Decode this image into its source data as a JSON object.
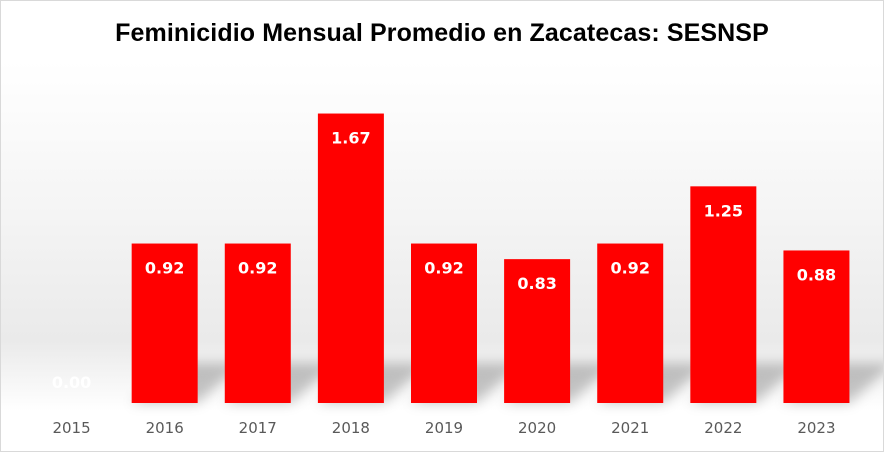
{
  "chart_data": {
    "type": "bar",
    "title": "Feminicidio Mensual Promedio en Zacatecas: SESNSP",
    "categories": [
      "2015",
      "2016",
      "2017",
      "2018",
      "2019",
      "2020",
      "2021",
      "2022",
      "2023"
    ],
    "values": [
      0.0,
      0.92,
      0.92,
      1.67,
      0.92,
      0.83,
      0.92,
      1.25,
      0.88
    ],
    "data_labels": [
      "0.00",
      "0.92",
      "0.92",
      "1.67",
      "0.92",
      "0.83",
      "0.92",
      "1.25",
      "0.88"
    ],
    "xlabel": "",
    "ylabel": "",
    "ylim": [
      0,
      1.8
    ],
    "bar_color": "#ff0000",
    "data_label_color": "#ffffff",
    "grid": false,
    "legend": "none"
  }
}
